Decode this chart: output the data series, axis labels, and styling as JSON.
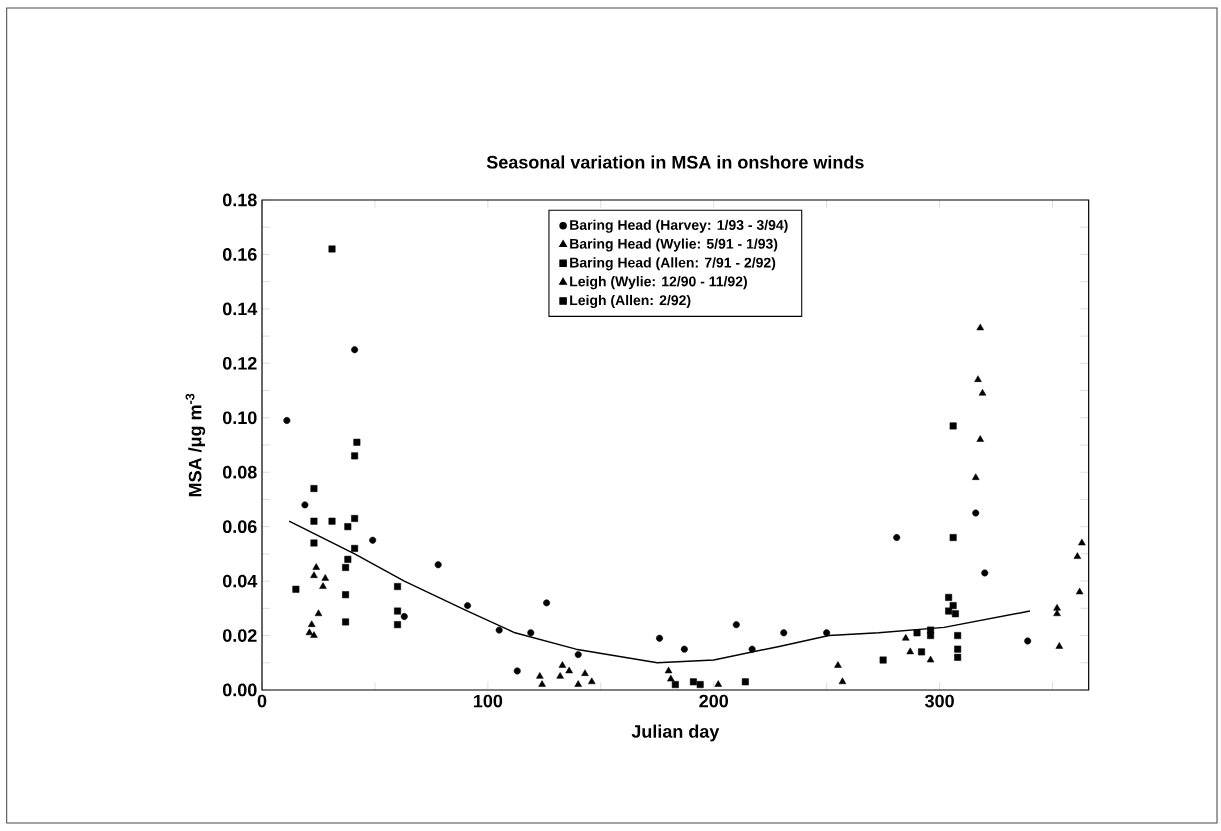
{
  "chart_data": {
    "type": "scatter",
    "title": "Seasonal variation in MSA in onshore winds",
    "xlabel": "Julian day",
    "ylabel": "MSA /μg m$^{-3}$",
    "xlim": [
      0,
      366
    ],
    "ylim": [
      0,
      0.18
    ],
    "xticks": [
      0,
      {
        "value": 50,
        "label": null
      },
      100,
      {
        "value": 150,
        "label": null
      },
      200,
      {
        "value": 250,
        "label": null
      },
      300,
      {
        "value": 350,
        "label": null
      }
    ],
    "yticks": [
      {
        "value": 0,
        "label": "0.00"
      },
      {
        "value": 0.01,
        "label": null
      },
      {
        "value": 0.02,
        "label": "0.02"
      },
      {
        "value": 0.03,
        "label": null
      },
      {
        "value": 0.04,
        "label": "0.04"
      },
      {
        "value": 0.05,
        "label": null
      },
      {
        "value": 0.06,
        "label": "0.06"
      },
      {
        "value": 0.07,
        "label": null
      },
      {
        "value": 0.08,
        "label": "0.08"
      },
      {
        "value": 0.09,
        "label": null
      },
      {
        "value": 0.1,
        "label": "0.10"
      },
      {
        "value": 0.11,
        "label": null
      },
      {
        "value": 0.12,
        "label": "0.12"
      },
      {
        "value": 0.13,
        "label": null
      },
      {
        "value": 0.14,
        "label": "0.14"
      },
      {
        "value": 0.15,
        "label": null
      },
      {
        "value": 0.16,
        "label": "0.16"
      },
      {
        "value": 0.17,
        "label": null
      },
      {
        "value": 0.18,
        "label": "0.18"
      }
    ],
    "legend": "top",
    "grid": false,
    "series": [
      {
        "name": "Baring Head (Harvey: 1/93 - 3/94)",
        "color": "#000000",
        "marker": "circle",
        "x": [
          11,
          19,
          41,
          49,
          63,
          78,
          91,
          105,
          113,
          119,
          126,
          140,
          176,
          187,
          210,
          217,
          231,
          250,
          281,
          316,
          320,
          339
        ],
        "values": [
          0.099,
          0.068,
          0.125,
          0.055,
          0.027,
          0.046,
          0.031,
          0.022,
          0.007,
          0.021,
          0.032,
          0.013,
          0.019,
          0.015,
          0.024,
          0.015,
          0.021,
          0.021,
          0.056,
          0.065,
          0.043,
          0.018
        ]
      },
      {
        "name": "Baring Head (Wylie: 5/91 - 1/93)",
        "color": "#000000",
        "marker": "triangle",
        "x": [
          123,
          124,
          132,
          133,
          136,
          140,
          143,
          146,
          180,
          181,
          202,
          255,
          257,
          285,
          287,
          296,
          352,
          352,
          353
        ],
        "values": [
          0.005,
          0.002,
          0.005,
          0.009,
          0.007,
          0.002,
          0.006,
          0.003,
          0.007,
          0.004,
          0.002,
          0.009,
          0.003,
          0.019,
          0.014,
          0.011,
          0.03,
          0.028,
          0.016
        ]
      },
      {
        "name": "Baring Head (Allen: 7/91 - 2/92)",
        "color": "#000000",
        "marker": "square",
        "x": [
          15,
          23,
          23,
          23,
          31,
          31,
          60,
          60,
          60,
          183,
          191,
          194,
          214,
          275,
          290,
          292,
          296,
          296,
          304,
          304,
          306,
          306,
          306,
          307,
          308,
          308,
          308
        ],
        "values": [
          0.037,
          0.074,
          0.062,
          0.054,
          0.162,
          0.062,
          0.038,
          0.029,
          0.024,
          0.002,
          0.003,
          0.002,
          0.003,
          0.011,
          0.021,
          0.014,
          0.022,
          0.02,
          0.034,
          0.029,
          0.097,
          0.056,
          0.031,
          0.028,
          0.02,
          0.015,
          0.012
        ]
      },
      {
        "name": "Leigh (Wylie: 12/90 - 11/92)",
        "color": "#000000",
        "marker": "triangle",
        "x": [
          21,
          22,
          23,
          23,
          24,
          25,
          27,
          28,
          316,
          317,
          318,
          318,
          319,
          361,
          362,
          363
        ],
        "values": [
          0.021,
          0.024,
          0.02,
          0.042,
          0.045,
          0.028,
          0.038,
          0.041,
          0.078,
          0.114,
          0.092,
          0.133,
          0.109,
          0.049,
          0.036,
          0.054
        ]
      },
      {
        "name": "Leigh (Allen: 2/92)",
        "color": "#000000",
        "marker": "square",
        "x": [
          37,
          37,
          37,
          38,
          38,
          41,
          41,
          41,
          42
        ],
        "values": [
          0.045,
          0.035,
          0.025,
          0.048,
          0.06,
          0.086,
          0.063,
          0.052,
          0.091
        ]
      },
      {
        "type": "line",
        "color": "#000000",
        "marker": "none",
        "line_style": "solid",
        "x": [
          12,
          41,
          63,
          91,
          112,
          139,
          175,
          200,
          229,
          251,
          273,
          302,
          340
        ],
        "values": [
          0.062,
          0.05,
          0.04,
          0.029,
          0.021,
          0.015,
          0.01,
          0.011,
          0.016,
          0.02,
          0.021,
          0.023,
          0.029
        ]
      }
    ]
  }
}
